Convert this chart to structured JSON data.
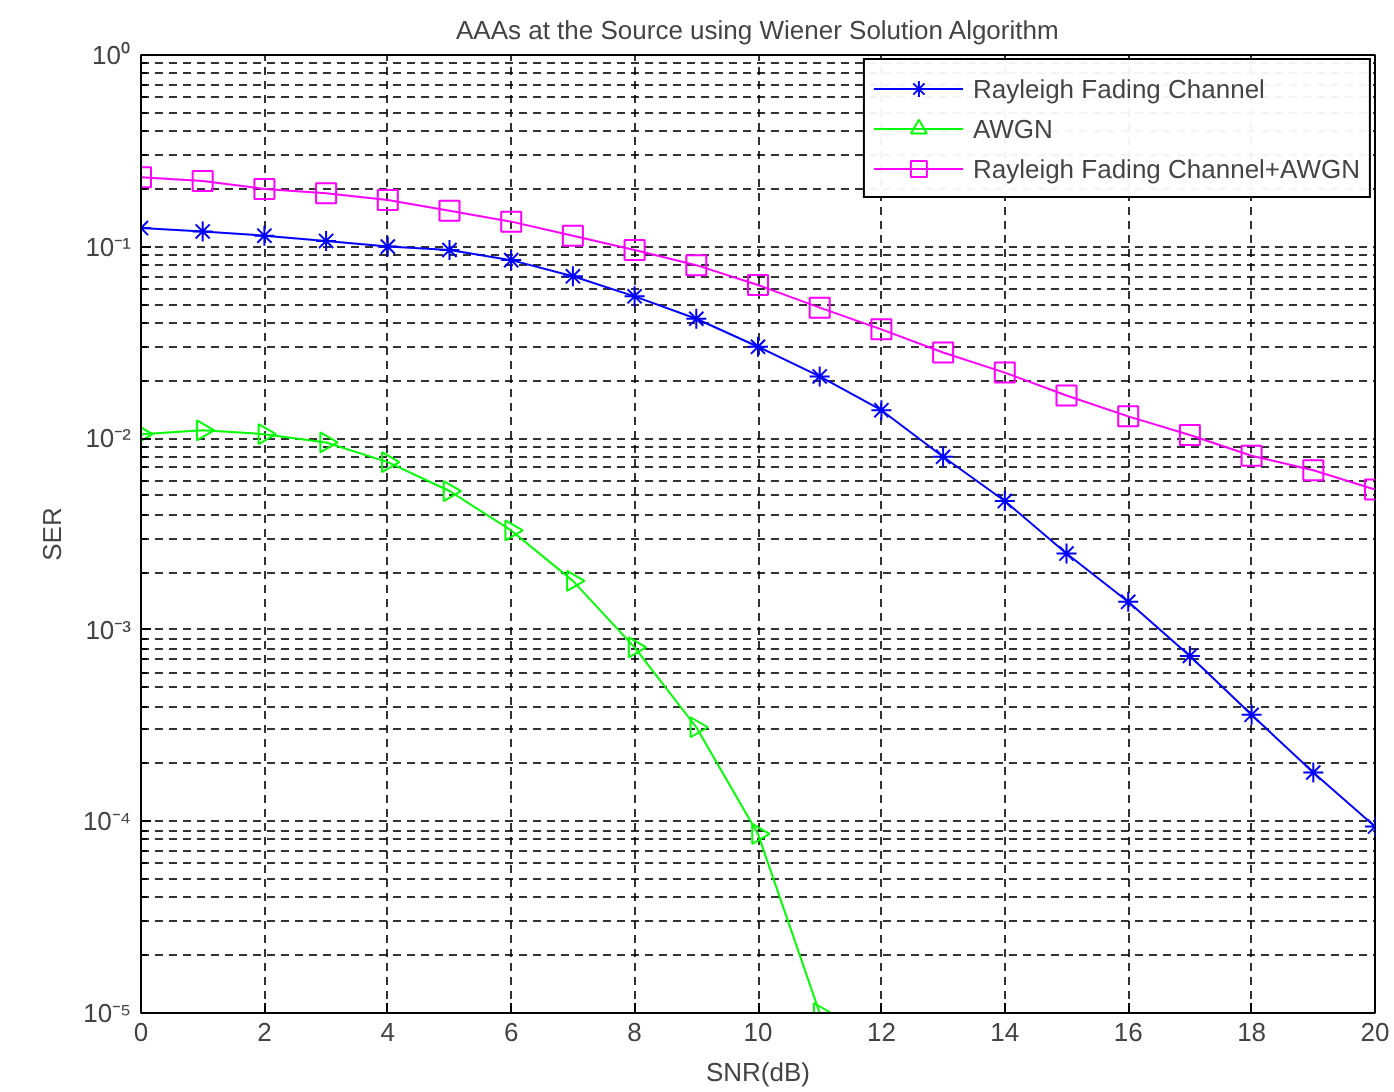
{
  "chart_data": {
    "type": "line",
    "title": "AAAs at the Source using Wiener Solution Algorithm",
    "xlabel": "SNR(dB)",
    "ylabel": "SER",
    "log": "y",
    "grid": true,
    "legend": "top right",
    "line_style": "solid",
    "x": [
      0,
      1,
      2,
      3,
      4,
      5,
      6,
      7,
      8,
      9,
      10,
      11,
      12,
      13,
      14,
      15,
      16,
      17,
      18,
      19,
      20
    ],
    "xlim": [
      0,
      20
    ],
    "xticks": [
      0,
      2,
      4,
      6,
      8,
      10,
      12,
      14,
      16,
      18,
      20
    ],
    "ylim": [
      1e-05,
      1
    ],
    "yticks": [
      {
        "value": 1e-05,
        "label": "10⁻⁵"
      },
      {
        "value": 0.0001,
        "label": "10⁻⁴"
      },
      {
        "value": 0.001,
        "label": "10⁻³"
      },
      {
        "value": 0.01,
        "label": "10⁻²"
      },
      {
        "value": 0.1,
        "label": "10⁻¹"
      },
      {
        "value": 1,
        "label": "10⁰"
      }
    ],
    "series": [
      {
        "name": "Rayleigh Fading Channel",
        "color": "#0000ff",
        "marker": "cross",
        "values": [
          0.125,
          0.12,
          0.114,
          0.107,
          0.1,
          0.096,
          0.085,
          0.07,
          0.055,
          0.042,
          0.03,
          0.021,
          0.014,
          0.008,
          0.0047,
          0.0025,
          0.0014,
          0.00073,
          0.00036,
          0.00018,
          9.4e-05
        ]
      },
      {
        "name": "AWGN",
        "color": "#00ff00",
        "marker": "triangle",
        "x": [
          0,
          1,
          2,
          3,
          4,
          5,
          6,
          7,
          8,
          9,
          10,
          11
        ],
        "values": [
          0.0105,
          0.011,
          0.0105,
          0.0095,
          0.0075,
          0.0053,
          0.0033,
          0.0018,
          0.00081,
          0.00031,
          8.6e-05,
          1e-05
        ]
      },
      {
        "name": "Rayleigh Fading Channel+AWGN",
        "color": "#ff00ff",
        "marker": "square",
        "values": [
          0.23,
          0.22,
          0.2,
          0.19,
          0.175,
          0.154,
          0.135,
          0.114,
          0.096,
          0.08,
          0.063,
          0.048,
          0.037,
          0.028,
          0.022,
          0.0167,
          0.013,
          0.0104,
          0.0081,
          0.0068,
          0.0054
        ]
      }
    ]
  }
}
